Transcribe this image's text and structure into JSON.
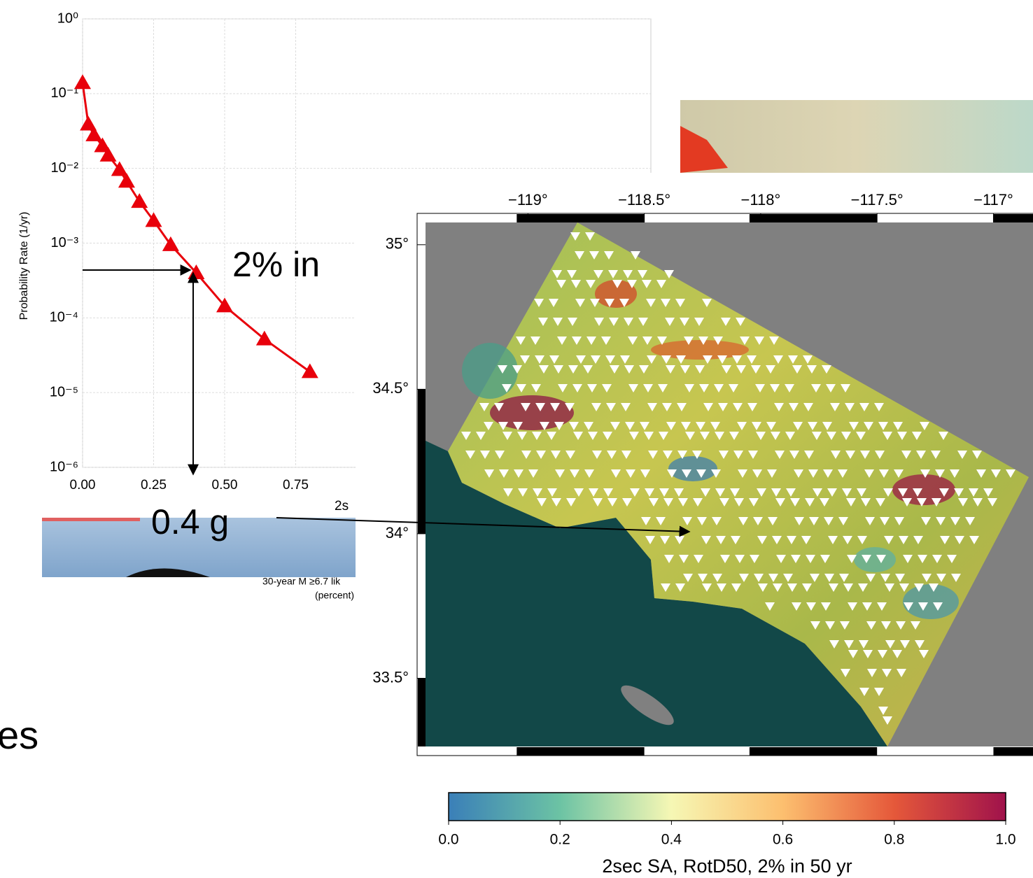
{
  "chart_data": [
    {
      "type": "line",
      "y_label": "Probability Rate (1/yr)",
      "x_label": "2s",
      "yscale": "log",
      "grid": true,
      "xlim": [
        0,
        2
      ],
      "ylim": [
        1e-06,
        1
      ],
      "xticks": [
        {
          "value": 0,
          "label": "0.00"
        },
        {
          "value": 0.25,
          "label": "0.25"
        },
        {
          "value": 0.5,
          "label": "0.50"
        },
        {
          "value": 0.75,
          "label": "0.75"
        }
      ],
      "yticks": [
        {
          "value": 1,
          "label": "10⁰"
        },
        {
          "value": 0.1,
          "label": "10⁻¹"
        },
        {
          "value": 0.01,
          "label": "10⁻²"
        },
        {
          "value": 0.001,
          "label": "10⁻³"
        },
        {
          "value": 0.0001,
          "label": "10⁻⁴"
        },
        {
          "value": 1e-05,
          "label": "10⁻⁵"
        },
        {
          "value": 1e-06,
          "label": "10⁻⁶"
        }
      ],
      "series": [
        {
          "color": "#e8000b",
          "marker": "triangle",
          "x": [
            0.0,
            0.02,
            0.04,
            0.07,
            0.09,
            0.13,
            0.155,
            0.2,
            0.25,
            0.31,
            0.4,
            0.5,
            0.64,
            0.8
          ],
          "values": [
            0.14,
            0.039,
            0.028,
            0.02,
            0.015,
            0.0096,
            0.0067,
            0.0036,
            0.002,
            0.00095,
            0.0004,
            0.000144,
            5.2e-05,
            1.9e-05
          ]
        }
      ]
    },
    {
      "type": "map",
      "xlim": [
        -119.44,
        -116.83
      ],
      "ylim": [
        33.264,
        35.077
      ],
      "xticks": [
        {
          "value": -119,
          "label": "−119°"
        },
        {
          "value": -118.5,
          "label": "−118.5°"
        },
        {
          "value": -118,
          "label": "−118°"
        },
        {
          "value": -117.5,
          "label": "−117.5°"
        },
        {
          "value": -117,
          "label": "−117°"
        }
      ],
      "yticks": [
        {
          "value": 35,
          "label": "35°"
        },
        {
          "value": 34.5,
          "label": "34.5°"
        },
        {
          "value": 34,
          "label": "34°"
        },
        {
          "value": 33.5,
          "label": "33.5°"
        }
      ]
    },
    {
      "type": "colorbar",
      "label": "2sec SA, RotD50, 2% in 50 yr",
      "xlim": [
        0,
        1
      ],
      "colors": [
        "#3a7fb8",
        "#6cc3a4",
        "#f6f7b4",
        "#fcbf6f",
        "#e5583a",
        "#a0124b"
      ],
      "xticks": [
        {
          "value": 0,
          "label": "0.0"
        },
        {
          "value": 0.2,
          "label": "0.2"
        },
        {
          "value": 0.4,
          "label": "0.4"
        },
        {
          "value": 0.6,
          "label": "0.6"
        },
        {
          "value": 0.8,
          "label": "0.8"
        },
        {
          "value": 1,
          "label": "1.0"
        }
      ]
    }
  ],
  "slide": {
    "callout_rate": "2% in",
    "callout_value": "0.4 g",
    "partial_word": "es",
    "fragments": [
      "30-year M ≥6.7 lik",
      "(percent)"
    ]
  }
}
